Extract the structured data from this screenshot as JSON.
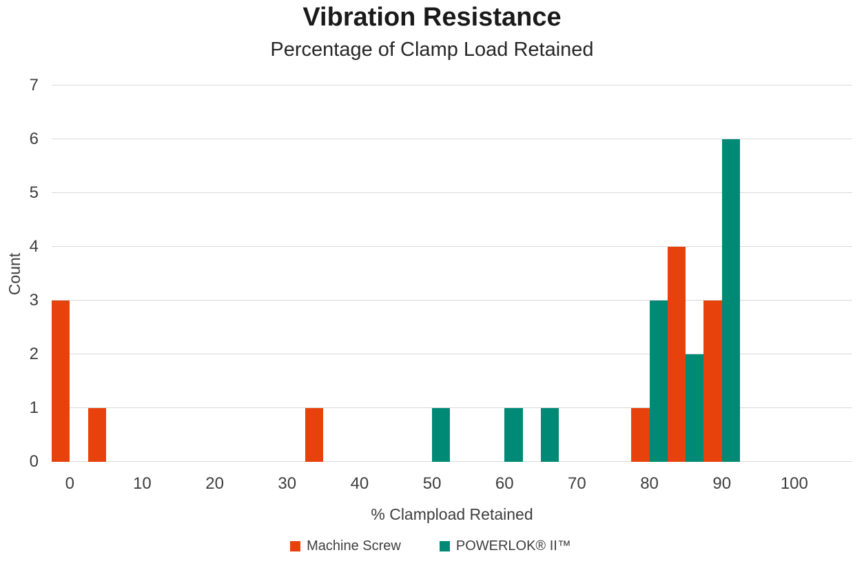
{
  "chart_data": {
    "type": "bar",
    "subtype": "histogram",
    "title": "Vibration Resistance",
    "subtitle": "Percentage of Clamp Load Retained",
    "xlabel": "% Clampload Retained",
    "ylabel": "Count",
    "xlim": [
      -2.5,
      108
    ],
    "ylim": [
      0,
      7
    ],
    "x_ticks": [
      0,
      10,
      20,
      30,
      40,
      50,
      60,
      70,
      80,
      90,
      100
    ],
    "y_ticks": [
      0,
      1,
      2,
      3,
      4,
      5,
      6,
      7
    ],
    "bin_width": 2.5,
    "grid": "horizontal",
    "legend_position": "bottom-center",
    "colors": {
      "gridline": "#D9D9D9",
      "tick_label": "#3D3D3D",
      "title": "#1A1A1A"
    },
    "series": [
      {
        "name": "Machine Screw",
        "color": "#E8420C",
        "bins": [
          {
            "x_center": -1.25,
            "count": 3
          },
          {
            "x_center": 3.75,
            "count": 1
          },
          {
            "x_center": 33.75,
            "count": 1
          },
          {
            "x_center": 78.75,
            "count": 1
          },
          {
            "x_center": 83.75,
            "count": 4
          },
          {
            "x_center": 88.75,
            "count": 3
          }
        ]
      },
      {
        "name": "POWERLOK® II™",
        "color": "#008974",
        "bins": [
          {
            "x_center": 51.25,
            "count": 1
          },
          {
            "x_center": 61.25,
            "count": 1
          },
          {
            "x_center": 66.25,
            "count": 1
          },
          {
            "x_center": 81.25,
            "count": 3
          },
          {
            "x_center": 86.25,
            "count": 2
          },
          {
            "x_center": 91.25,
            "count": 6
          }
        ]
      }
    ]
  }
}
